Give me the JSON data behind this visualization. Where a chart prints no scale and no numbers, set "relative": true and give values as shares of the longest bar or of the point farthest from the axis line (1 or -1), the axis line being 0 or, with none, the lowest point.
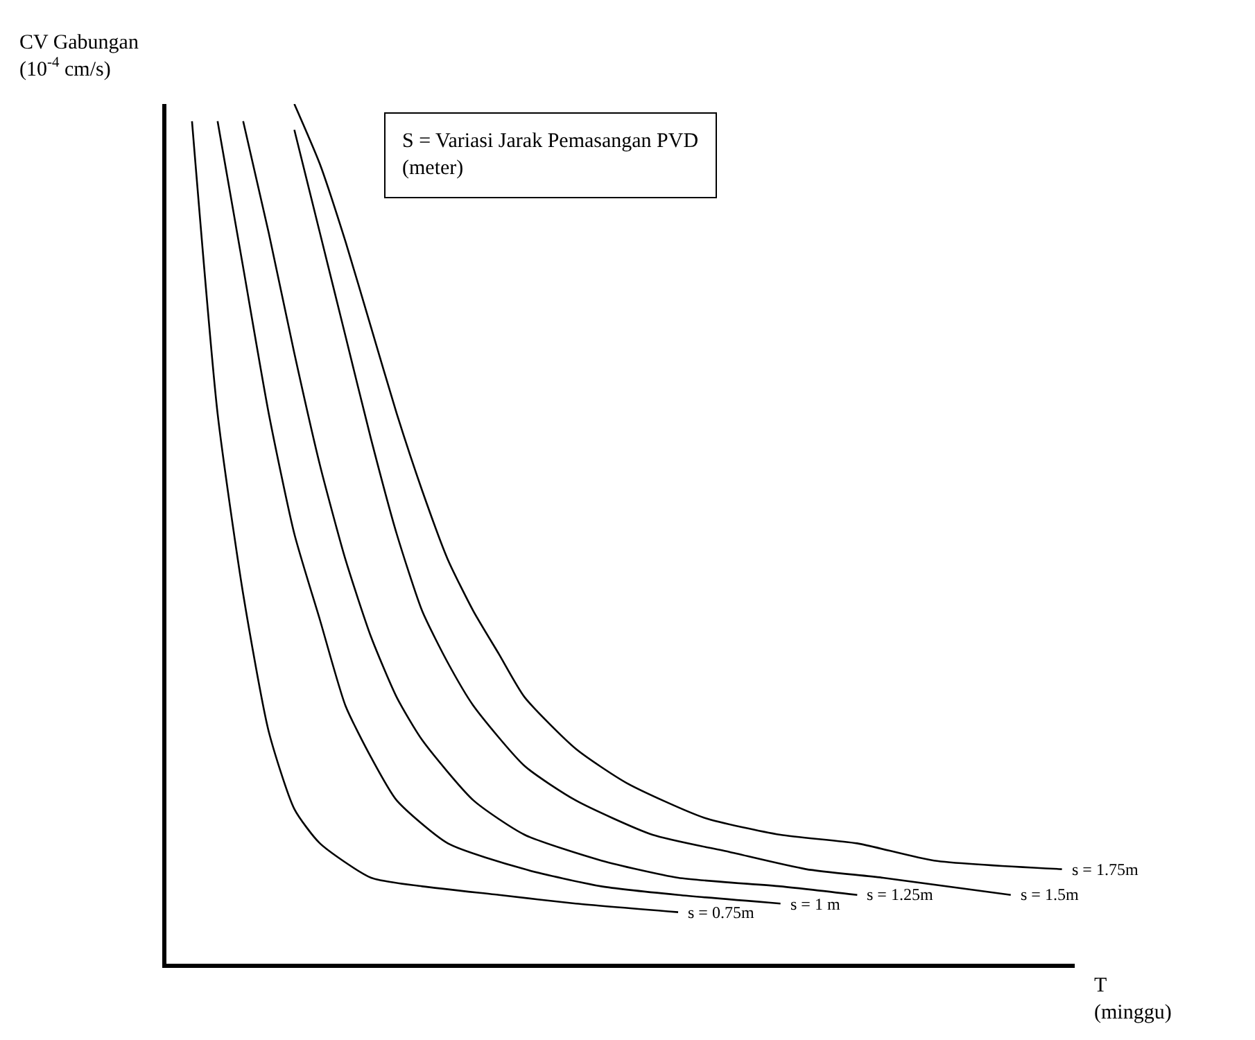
{
  "chart_data": {
    "type": "line",
    "relative": true,
    "xlabel": "T\n(minggu)",
    "ylabel": "CV Gabungan\n(10$^{-4}$ cm/s)",
    "annotations": [
      "S = Variasi Jarak Pemasangan PVD\n(meter)"
    ],
    "categories": [
      null,
      null,
      null,
      null,
      null,
      null,
      null,
      null,
      null,
      null,
      null,
      null,
      null,
      null,
      null,
      null,
      null,
      null,
      null,
      null,
      null,
      null,
      null,
      null,
      null,
      null,
      null,
      null,
      null,
      null,
      null,
      null,
      null,
      null,
      null,
      null
    ],
    "series": [
      {
        "name": "s = 0.75m",
        "color": "#000000",
        "values": [
          null,
          0.98,
          0.64,
          0.43,
          0.27,
          0.18,
          0.14,
          null,
          0.1,
          null,
          0.09,
          null,
          null,
          0.08,
          null,
          null,
          0.07,
          null,
          null,
          null,
          0.06,
          null,
          null,
          null,
          null,
          null,
          null,
          null,
          null,
          null,
          null,
          null,
          null,
          null,
          null,
          null
        ]
      },
      {
        "name": "s = 1 m",
        "color": "#000000",
        "values": [
          null,
          null,
          0.98,
          0.81,
          0.64,
          0.5,
          0.4,
          0.3,
          0.24,
          0.19,
          null,
          0.14,
          null,
          null,
          0.11,
          null,
          null,
          0.09,
          null,
          null,
          0.08,
          null,
          null,
          null,
          0.07,
          null,
          null,
          null,
          null,
          null,
          null,
          null,
          null,
          null,
          null,
          null
        ]
      },
      {
        "name": "s = 1.25m",
        "color": "#000000",
        "values": [
          null,
          null,
          null,
          0.98,
          0.85,
          0.71,
          0.58,
          0.47,
          0.38,
          0.31,
          0.26,
          null,
          0.19,
          null,
          0.15,
          null,
          null,
          0.12,
          null,
          null,
          0.1,
          null,
          null,
          null,
          0.09,
          null,
          null,
          0.08,
          null,
          null,
          null,
          null,
          null,
          null,
          null,
          null
        ]
      },
      {
        "name": "s = 1.5m",
        "color": "#000000",
        "values": [
          null,
          null,
          null,
          null,
          null,
          0.97,
          0.85,
          0.73,
          0.61,
          0.5,
          0.41,
          0.35,
          0.3,
          null,
          0.23,
          null,
          0.19,
          null,
          null,
          0.15,
          null,
          null,
          0.13,
          null,
          null,
          0.11,
          null,
          null,
          0.1,
          null,
          null,
          null,
          null,
          0.08,
          null,
          null
        ]
      },
      {
        "name": "s = 1.75m",
        "color": "#000000",
        "values": [
          null,
          null,
          null,
          null,
          null,
          1,
          0.93,
          0.84,
          0.74,
          0.64,
          0.55,
          0.47,
          0.41,
          0.36,
          0.31,
          null,
          0.25,
          null,
          0.21,
          null,
          null,
          0.17,
          null,
          null,
          0.15,
          null,
          null,
          0.14,
          null,
          null,
          0.12,
          null,
          null,
          null,
          null,
          0.11
        ]
      }
    ],
    "legend": false,
    "marker": "none",
    "line_style": "solid"
  }
}
